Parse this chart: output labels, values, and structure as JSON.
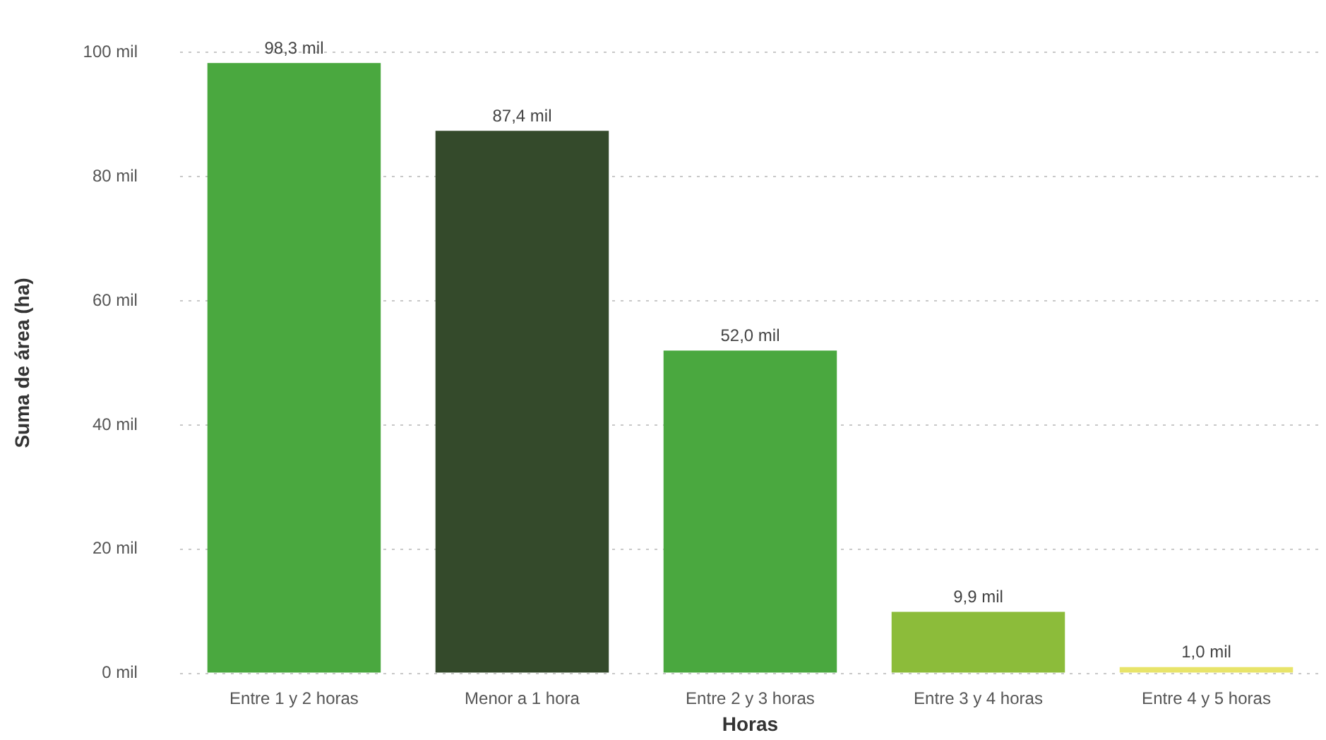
{
  "chart_data": {
    "type": "bar",
    "xlabel": "Horas",
    "ylabel": "Suma de área (ha)",
    "categories": [
      "Entre 1 y 2 horas",
      "Menor a 1 hora",
      "Entre 2 y 3 horas",
      "Entre 3 y 4 horas",
      "Entre 4 y 5 horas"
    ],
    "values": [
      98.3,
      87.4,
      52.0,
      9.9,
      1.0
    ],
    "colors": [
      "#4aa83f",
      "#344a2b",
      "#4aa83f",
      "#8cbc3a",
      "#e8e46a"
    ],
    "value_labels": [
      "98,3 mil",
      "87,4 mil",
      "52,0 mil",
      "9,9 mil",
      "1,0 mil"
    ],
    "ylim": [
      0,
      100
    ],
    "yticks": [
      {
        "value": 0,
        "label": "0 mil"
      },
      {
        "value": 20,
        "label": "20 mil"
      },
      {
        "value": 40,
        "label": "40 mil"
      },
      {
        "value": 60,
        "label": "60 mil"
      },
      {
        "value": 80,
        "label": "80 mil"
      },
      {
        "value": 100,
        "label": "100 mil"
      }
    ],
    "grid": "y",
    "legend": false
  }
}
